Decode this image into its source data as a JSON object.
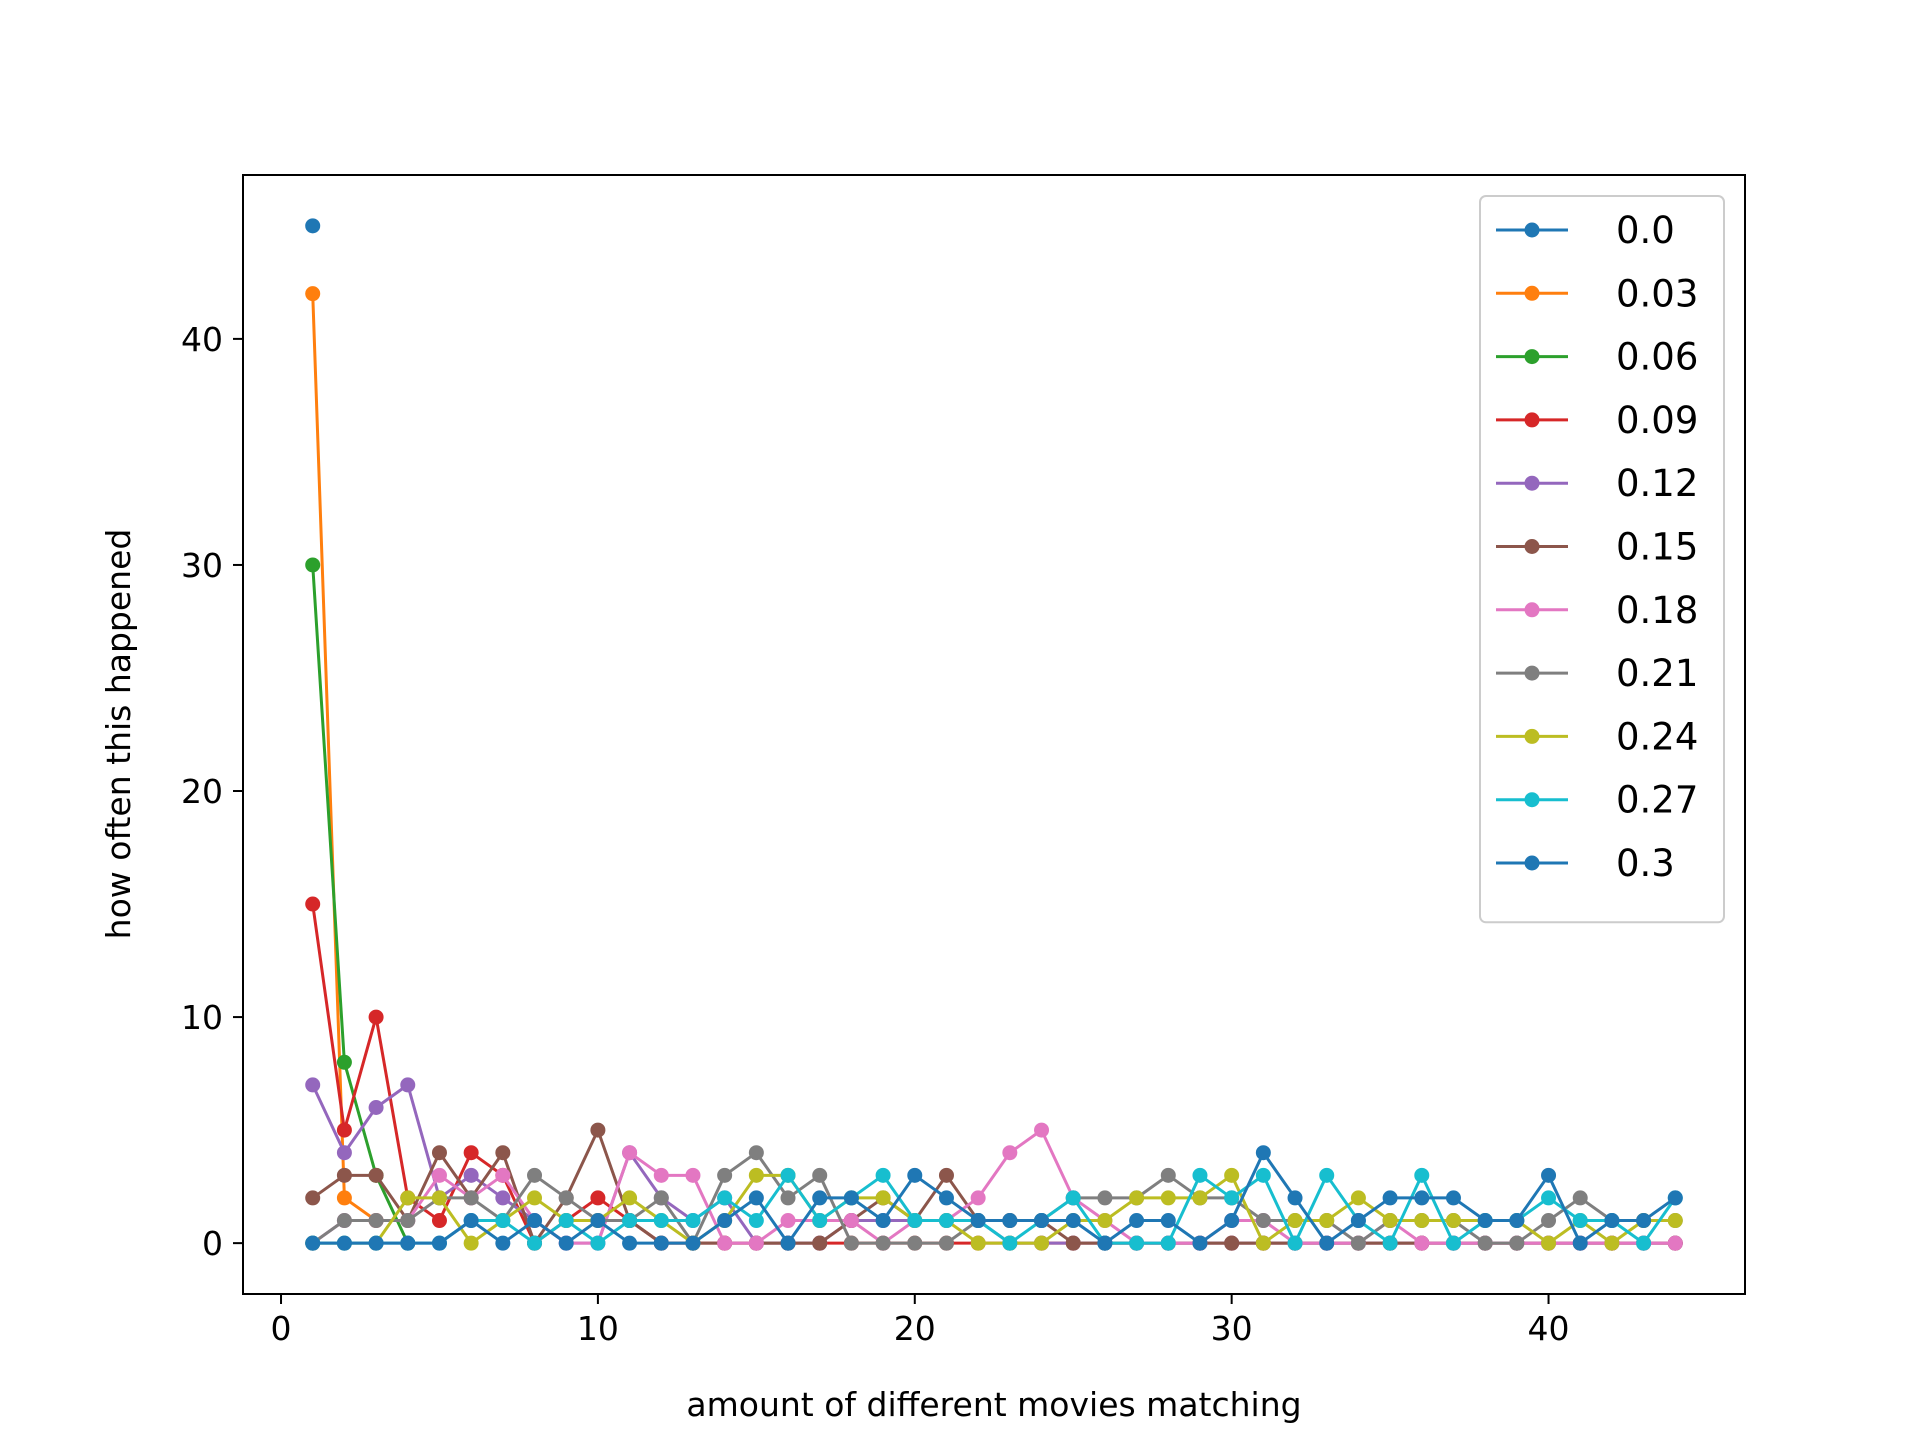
{
  "chart_data": {
    "type": "line",
    "title": "",
    "xlabel": "amount of different movies matching",
    "ylabel": "how often this happened",
    "xlim": [
      -1.2,
      46.2
    ],
    "ylim": [
      -2.25,
      47.25
    ],
    "xticks": [
      0,
      10,
      20,
      30,
      40
    ],
    "yticks": [
      0,
      10,
      20,
      30,
      40
    ],
    "xtick_labels": [
      "0",
      "10",
      "20",
      "30",
      "40"
    ],
    "ytick_labels": [
      "0",
      "10",
      "20",
      "30",
      "40"
    ],
    "grid": false,
    "legend_position": "upper right",
    "marker": "circle",
    "x": [
      1,
      2,
      3,
      4,
      5,
      6,
      7,
      8,
      9,
      10,
      11,
      12,
      13,
      14,
      15,
      16,
      17,
      18,
      19,
      20,
      21,
      22,
      23,
      24,
      25,
      26,
      27,
      28,
      29,
      30,
      31,
      32,
      33,
      34,
      35,
      36,
      37,
      38,
      39,
      40,
      41,
      42,
      43,
      44
    ],
    "series": [
      {
        "name": "0.0",
        "color": "#1f77b4",
        "x": [
          1
        ],
        "values": [
          45
        ]
      },
      {
        "name": "0.03",
        "color": "#ff7f0e",
        "x": [
          1,
          2,
          3
        ],
        "values": [
          42,
          2,
          1
        ]
      },
      {
        "name": "0.06",
        "color": "#2ca02c",
        "x": [
          1,
          2,
          3,
          4
        ],
        "values": [
          30,
          8,
          3,
          0
        ]
      },
      {
        "name": "0.09",
        "color": "#d62728",
        "values": [
          15,
          5,
          10,
          2,
          1,
          4,
          3,
          0,
          1,
          2,
          1,
          0,
          0,
          0,
          0,
          0,
          0,
          0,
          0,
          0,
          0,
          0,
          0,
          0,
          0,
          0,
          0,
          0,
          0,
          0,
          0,
          0,
          0,
          0,
          0,
          0,
          0,
          0,
          0,
          0,
          0,
          0,
          0,
          0
        ]
      },
      {
        "name": "0.12",
        "color": "#9467bd",
        "values": [
          7,
          4,
          6,
          7,
          2,
          3,
          2,
          1,
          0,
          0,
          4,
          2,
          1,
          2,
          0,
          0,
          0,
          1,
          1,
          1,
          1,
          1,
          0,
          0,
          0,
          0,
          0,
          0,
          0,
          0,
          0,
          0,
          0,
          0,
          0,
          0,
          0,
          0,
          0,
          0,
          0,
          0,
          0,
          0
        ]
      },
      {
        "name": "0.15",
        "color": "#8c564b",
        "values": [
          2,
          3,
          3,
          1,
          4,
          2,
          4,
          0,
          2,
          5,
          1,
          0,
          0,
          0,
          0,
          0,
          0,
          1,
          2,
          1,
          3,
          1,
          1,
          1,
          0,
          0,
          0,
          0,
          0,
          0,
          0,
          0,
          0,
          0,
          0,
          0,
          0,
          0,
          0,
          0,
          0,
          0,
          0,
          0
        ]
      },
      {
        "name": "0.18",
        "color": "#e377c2",
        "values": [
          0,
          1,
          1,
          1,
          3,
          2,
          3,
          1,
          0,
          0,
          4,
          3,
          3,
          0,
          0,
          1,
          1,
          1,
          0,
          1,
          1,
          2,
          4,
          5,
          2,
          1,
          0,
          0,
          0,
          1,
          1,
          0,
          0,
          0,
          1,
          0,
          0,
          0,
          0,
          0,
          0,
          0,
          0,
          0
        ]
      },
      {
        "name": "0.21",
        "color": "#7f7f7f",
        "values": [
          0,
          1,
          1,
          1,
          2,
          2,
          1,
          3,
          2,
          1,
          1,
          2,
          0,
          3,
          4,
          2,
          3,
          0,
          0,
          0,
          0,
          1,
          1,
          1,
          2,
          2,
          2,
          3,
          2,
          2,
          1,
          1,
          1,
          0,
          1,
          1,
          1,
          0,
          0,
          1,
          2,
          1,
          1,
          1
        ]
      },
      {
        "name": "0.24",
        "color": "#bcbd22",
        "values": [
          0,
          0,
          0,
          2,
          2,
          0,
          1,
          2,
          1,
          1,
          2,
          1,
          0,
          1,
          3,
          3,
          1,
          2,
          2,
          1,
          1,
          0,
          0,
          0,
          1,
          1,
          2,
          2,
          2,
          3,
          0,
          1,
          1,
          2,
          1,
          1,
          1,
          1,
          1,
          0,
          1,
          0,
          1,
          1
        ]
      },
      {
        "name": "0.27",
        "color": "#17becf",
        "values": [
          0,
          0,
          0,
          0,
          0,
          1,
          1,
          0,
          1,
          0,
          1,
          1,
          1,
          2,
          1,
          3,
          1,
          2,
          3,
          1,
          1,
          1,
          0,
          1,
          2,
          0,
          0,
          0,
          3,
          2,
          3,
          0,
          3,
          1,
          0,
          3,
          0,
          1,
          1,
          2,
          1,
          1,
          0,
          2
        ]
      },
      {
        "name": "0.3",
        "color": "#1f77b4",
        "values": [
          0,
          0,
          0,
          0,
          0,
          1,
          0,
          1,
          0,
          1,
          0,
          0,
          0,
          1,
          2,
          0,
          2,
          2,
          1,
          3,
          2,
          1,
          1,
          1,
          1,
          0,
          1,
          1,
          0,
          1,
          4,
          2,
          0,
          1,
          2,
          2,
          2,
          1,
          1,
          3,
          0,
          1,
          1,
          2
        ]
      }
    ]
  }
}
